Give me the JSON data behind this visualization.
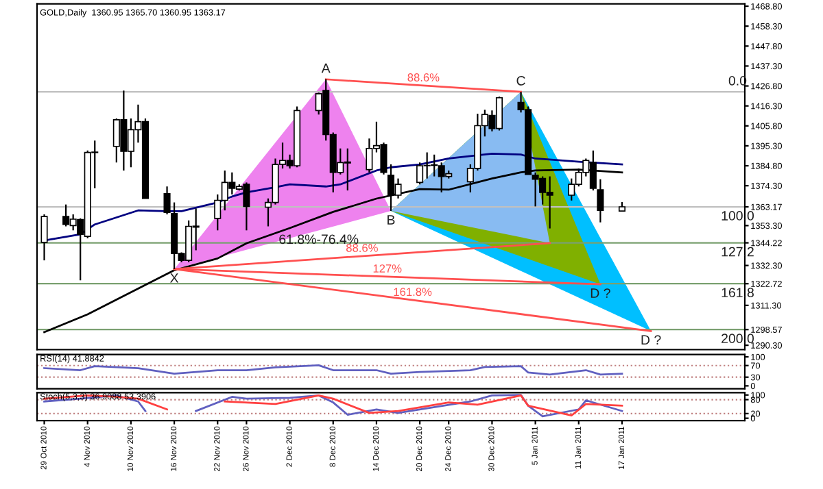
{
  "chart_data": [
    {
      "type": "candlestick",
      "title": "GOLD,Daily  1360.95 1365.70 1360.95 1363.17",
      "x": [
        "2010-10-29",
        "2010-11-01",
        "2010-11-02",
        "2010-11-03",
        "2010-11-04",
        "2010-11-05",
        "2010-11-08",
        "2010-11-09",
        "2010-11-10",
        "2010-11-11",
        "2010-11-12",
        "2010-11-15",
        "2010-11-16",
        "2010-11-17",
        "2010-11-18",
        "2010-11-19",
        "2010-11-22",
        "2010-11-23",
        "2010-11-24",
        "2010-11-25",
        "2010-11-26",
        "2010-11-29",
        "2010-11-30",
        "2010-12-01",
        "2010-12-02",
        "2010-12-03",
        "2010-12-06",
        "2010-12-07",
        "2010-12-08",
        "2010-12-09",
        "2010-12-10",
        "2010-12-13",
        "2010-12-14",
        "2010-12-15",
        "2010-12-16",
        "2010-12-17",
        "2010-12-20",
        "2010-12-21",
        "2010-12-22",
        "2010-12-23",
        "2010-12-24",
        "2010-12-27",
        "2010-12-28",
        "2010-12-29",
        "2010-12-30",
        "2010-12-31",
        "2011-01-03",
        "2011-01-04",
        "2011-01-05",
        "2011-01-06",
        "2011-01-07",
        "2011-01-10",
        "2011-01-11",
        "2011-01-12",
        "2011-01-13",
        "2011-01-14",
        "2011-01-17"
      ],
      "ohlc": [
        [
          1344.5,
          1359.2,
          1335.0,
          1358.1
        ],
        [
          1358.1,
          1364.4,
          1352.9,
          1353.9
        ],
        [
          1353.3,
          1359.2,
          1350.8,
          1356.7
        ],
        [
          1356.5,
          1357.1,
          1324.5,
          1348.7
        ],
        [
          1347.6,
          1392.8,
          1346.6,
          1391.8
        ],
        [
          1391.8,
          1398.1,
          1372.9,
          1392.0
        ],
        [
          1395.0,
          1409.7,
          1386.5,
          1409.0
        ],
        [
          1409.0,
          1424.4,
          1382.3,
          1392.4
        ],
        [
          1392.4,
          1409.7,
          1384.0,
          1403.8
        ],
        [
          1403.8,
          1417.0,
          1397.0,
          1408.0
        ],
        [
          1408.0,
          1409.7,
          1367.6,
          1367.6
        ],
        [
          1370.1,
          1373.9,
          1359.2,
          1360.2
        ],
        [
          1359.6,
          1365.5,
          1330.4,
          1338.6
        ],
        [
          1338.6,
          1339.2,
          1334.0,
          1335.0
        ],
        [
          1335.0,
          1356.0,
          1334.0,
          1352.9
        ],
        [
          1352.5,
          1362.3,
          1340.3,
          1353.0
        ],
        [
          1357.1,
          1369.7,
          1350.8,
          1366.6
        ],
        [
          1366.6,
          1382.3,
          1361.3,
          1376.0
        ],
        [
          1376.0,
          1381.3,
          1369.7,
          1372.9
        ],
        [
          1372.5,
          1375.0,
          1371.8,
          1373.9
        ],
        [
          1375.0,
          1376.0,
          1350.8,
          1363.4
        ],
        [
          1363.0,
          1367.6,
          1352.9,
          1365.5
        ],
        [
          1365.5,
          1388.6,
          1364.4,
          1385.5
        ],
        [
          1385.6,
          1397.0,
          1383.4,
          1387.6
        ],
        [
          1387.6,
          1390.7,
          1383.4,
          1384.8
        ],
        [
          1384.8,
          1416.0,
          1384.0,
          1413.9
        ],
        [
          1413.9,
          1423.3,
          1411.8,
          1422.7
        ],
        [
          1424.4,
          1430.3,
          1398.1,
          1401.2
        ],
        [
          1401.2,
          1402.3,
          1370.8,
          1381.3
        ],
        [
          1381.3,
          1393.9,
          1380.2,
          1386.5
        ],
        [
          1386.8,
          1393.9,
          1371.8,
          1386.3
        ],
        [
          1382.8,
          1399.1,
          1381.3,
          1393.9
        ],
        [
          1393.9,
          1408.0,
          1391.8,
          1395.4
        ],
        [
          1396.0,
          1397.0,
          1380.2,
          1381.3
        ],
        [
          1379.8,
          1385.5,
          1361.0,
          1369.3
        ],
        [
          1369.3,
          1378.1,
          1367.6,
          1375.0
        ],
        [
          1376.0,
          1386.5,
          1375.0,
          1384.8
        ],
        [
          1384.8,
          1391.8,
          1378.1,
          1385.0
        ],
        [
          1385.0,
          1390.7,
          1379.2,
          1385.2
        ],
        [
          1384.8,
          1386.5,
          1370.8,
          1379.2
        ],
        [
          1379.2,
          1382.3,
          1378.1,
          1380.6
        ],
        [
          1376.4,
          1385.5,
          1370.8,
          1383.4
        ],
        [
          1383.4,
          1412.2,
          1382.3,
          1405.9
        ],
        [
          1405.9,
          1414.3,
          1400.2,
          1411.8
        ],
        [
          1411.3,
          1413.9,
          1402.9,
          1404.4
        ],
        [
          1404.4,
          1421.2,
          1403.4,
          1420.6
        ],
        [
          1418.1,
          1423.7,
          1412.8,
          1414.3
        ],
        [
          1414.3,
          1416.0,
          1380.2,
          1380.2
        ],
        [
          1379.8,
          1381.3,
          1363.4,
          1377.7
        ],
        [
          1378.1,
          1379.2,
          1364.4,
          1370.8
        ],
        [
          1370.8,
          1379.2,
          1351.8,
          1369.3
        ],
        [
          1369.3,
          1378.1,
          1366.5,
          1375.0
        ],
        [
          1375.0,
          1383.4,
          1373.9,
          1381.3
        ],
        [
          1381.3,
          1388.6,
          1379.2,
          1387.6
        ],
        [
          1386.5,
          1392.8,
          1371.8,
          1372.9
        ],
        [
          1372.2,
          1377.7,
          1355.0,
          1361.3
        ],
        [
          1360.95,
          1365.7,
          1360.95,
          1363.17
        ]
      ],
      "series": [
        {
          "type": "area",
          "color": "#ee82ee",
          "x": [
            "2010-11-16",
            "2010-12-07",
            "2010-12-16"
          ],
          "values": [
            1330.4,
            1430.3,
            1361.0
          ]
        },
        {
          "type": "area",
          "color": "#00bfff",
          "x": [
            "2010-12-16",
            "2011-01-03",
            "2011-01-21"
          ],
          "values": [
            1361.0,
            1423.7,
            1297.8
          ]
        },
        {
          "type": "area",
          "color": "#80b000",
          "x": [
            "2010-12-16",
            "2011-01-03",
            "2011-01-14"
          ],
          "values": [
            1361.0,
            1423.7,
            1322.4
          ]
        },
        {
          "type": "area",
          "color": "#88bbf2",
          "x": [
            "2010-12-16",
            "2011-01-03",
            "2011-01-07"
          ],
          "values": [
            1361.0,
            1423.7,
            1344.1
          ]
        },
        {
          "type": "line",
          "color": "#000080",
          "x": [
            "2010-10-29",
            "2010-11-03",
            "2010-11-05",
            "2010-11-11",
            "2010-11-15",
            "2010-11-17",
            "2010-11-22",
            "2010-11-24",
            "2010-11-26",
            "2010-11-30",
            "2010-12-02",
            "2010-12-07",
            "2010-12-09",
            "2010-12-14",
            "2010-12-16",
            "2010-12-20",
            "2010-12-24",
            "2010-12-30",
            "2011-01-03",
            "2011-01-05",
            "2011-01-11",
            "2011-01-17"
          ],
          "values": [
            1345.5,
            1348.7,
            1353.9,
            1361.3,
            1360.9,
            1360.9,
            1365.5,
            1368.6,
            1370.8,
            1373.5,
            1375.0,
            1373.9,
            1375.0,
            1382.3,
            1384.0,
            1385.5,
            1388.6,
            1391.2,
            1390.7,
            1388.6,
            1386.9,
            1385.5
          ]
        },
        {
          "type": "line",
          "color": "#000000",
          "x": [
            "2010-10-29",
            "2010-11-04",
            "2010-11-10",
            "2010-11-16",
            "2010-11-22",
            "2010-11-26",
            "2010-12-02",
            "2010-12-08",
            "2010-12-14",
            "2010-12-20",
            "2010-12-24",
            "2010-12-30",
            "2011-01-03",
            "2011-01-05",
            "2011-01-11",
            "2011-01-17"
          ],
          "values": [
            1297.2,
            1306.6,
            1318.2,
            1329.8,
            1336.0,
            1344.0,
            1352.0,
            1360.5,
            1367.5,
            1372.5,
            1372.2,
            1378.1,
            1381.3,
            1382.3,
            1382.8,
            1381.3
          ]
        },
        {
          "type": "line",
          "name": "88.6%",
          "color": "#ff5050",
          "x": [
            "2010-12-07",
            "2011-01-03"
          ],
          "values": [
            1430.3,
            1423.7
          ]
        },
        {
          "type": "line",
          "name": "88.6%",
          "color": "#ff5050",
          "x": [
            "2010-11-16",
            "2011-01-07"
          ],
          "values": [
            1330.4,
            1344.1
          ]
        },
        {
          "type": "line",
          "name": "127%",
          "color": "#ff5050",
          "x": [
            "2010-11-16",
            "2011-01-14"
          ],
          "values": [
            1330.4,
            1322.4
          ]
        },
        {
          "type": "line",
          "name": "161.8%",
          "color": "#ff5050",
          "x": [
            "2010-11-16",
            "2011-01-21"
          ],
          "values": [
            1330.4,
            1297.8
          ]
        }
      ],
      "annotations": [
        {
          "text": "A",
          "x": "2010-12-07",
          "y": 1430.3
        },
        {
          "text": "X",
          "x": "2010-11-16",
          "y": 1330.4
        },
        {
          "text": "B",
          "x": "2010-12-16",
          "y": 1361.0
        },
        {
          "text": "C",
          "x": "2011-01-03",
          "y": 1423.7
        },
        {
          "text": "D ?",
          "x": "2011-01-14",
          "y": 1322.4
        },
        {
          "text": "D ?",
          "x": "2011-01-21",
          "y": 1297.8
        },
        {
          "text": "61.8%-76.4%",
          "x": "2010-12-06",
          "y": 1350.8
        },
        {
          "text": "0.0",
          "x": "2011-02-02",
          "y": 1423.7
        },
        {
          "text": "100.0",
          "x": "2011-02-02",
          "y": 1363.17
        },
        {
          "text": "127.2",
          "x": "2011-02-02",
          "y": 1344.22
        },
        {
          "text": "161.8",
          "x": "2011-02-02",
          "y": 1322.72
        },
        {
          "text": "200.0",
          "x": "2011-02-02",
          "y": 1298.57
        }
      ],
      "ref_lines": [
        {
          "axis": "y",
          "value": 1423.7,
          "color": "#c0c0c0"
        },
        {
          "axis": "y",
          "value": 1363.17,
          "color": "#c0c0c0"
        },
        {
          "axis": "y",
          "value": 1344.22,
          "color": "#7aa070"
        },
        {
          "axis": "y",
          "value": 1322.72,
          "color": "#7aa070"
        },
        {
          "axis": "y",
          "value": 1298.57,
          "color": "#7aa070"
        }
      ],
      "xlim": [
        "2010-10-28",
        "2011-02-03"
      ],
      "ylim": [
        1288,
        1470
      ],
      "yticks": [
        {
          "value": 1468.8,
          "label": "1468.80"
        },
        {
          "value": 1458.3,
          "label": "1458.30"
        },
        {
          "value": 1447.8,
          "label": "1447.80"
        },
        {
          "value": 1437.3,
          "label": "1437.30"
        },
        {
          "value": 1426.8,
          "label": "1426.80"
        },
        {
          "value": 1416.3,
          "label": "1416.30"
        },
        {
          "value": 1405.8,
          "label": "1405.80"
        },
        {
          "value": 1395.3,
          "label": "1395.30"
        },
        {
          "value": 1384.8,
          "label": "1384.80"
        },
        {
          "value": 1374.3,
          "label": "1374.30"
        },
        1363.17,
        {
          "value": 1353.3,
          "label": "1353.30"
        },
        1344.22,
        {
          "value": 1332.3,
          "label": "1332.30"
        },
        1322.72,
        {
          "value": 1311.3,
          "label": "1311.30"
        },
        1298.57,
        {
          "value": 1290.3,
          "label": "1290.30"
        }
      ],
      "tick_labels": "y",
      "grid": false,
      "legend": false
    },
    {
      "type": "line",
      "title": "RSI(14) 41.8842",
      "series": [
        {
          "color": "#6060c0",
          "x": [
            "2010-10-29",
            "2010-11-03",
            "2010-11-05",
            "2010-11-11",
            "2010-11-16",
            "2010-11-22",
            "2010-11-26",
            "2010-11-30",
            "2010-12-06",
            "2010-12-08",
            "2010-12-14",
            "2010-12-16",
            "2010-12-20",
            "2010-12-27",
            "2010-12-29",
            "2011-01-03",
            "2011-01-04",
            "2011-01-07",
            "2011-01-12",
            "2011-01-14",
            "2011-01-17"
          ],
          "values": [
            61,
            54,
            68,
            61,
            42,
            54,
            54,
            64,
            71,
            54,
            54,
            42,
            48,
            54,
            65,
            68,
            46,
            39,
            54,
            39,
            42
          ]
        }
      ],
      "ref_lines": [
        {
          "axis": "y",
          "value": 30,
          "color": "#c08080",
          "line_style": "dotted"
        },
        {
          "axis": "y",
          "value": 70,
          "color": "#c08080",
          "line_style": "dotted"
        }
      ],
      "xlim": [
        "2010-10-28",
        "2011-02-03"
      ],
      "ylim": [
        -10,
        108
      ],
      "yticks": [
        0,
        30,
        70,
        100
      ],
      "tick_labels": "y",
      "grid": false,
      "legend": false
    },
    {
      "type": "line",
      "title": "Stoch(5,3,3) 36.9088 53.3906",
      "series": [
        {
          "color": "#6060c0",
          "x": [
            "2010-10-29",
            "2010-11-03",
            "2010-11-08",
            "2010-11-11",
            "2010-11-12",
            "2010-11-16",
            "2010-11-19",
            "2010-11-24",
            "2010-11-26",
            "2010-12-02",
            "2010-12-06",
            "2010-12-08",
            "2010-12-10",
            "2010-12-14",
            "2010-12-17",
            "2010-12-27",
            "2010-12-30",
            "2011-01-03",
            "2011-01-04",
            "2011-01-06",
            "2011-01-11",
            "2011-01-12",
            "2011-01-17"
          ],
          "values": [
            72,
            84,
            98,
            72,
            31,
            null,
            31,
            92,
            84,
            88,
            98,
            68,
            15,
            38,
            23,
            72,
            98,
            100,
            54,
            8,
            38,
            77,
            31
          ]
        },
        {
          "color": "#ff4040",
          "x": [
            "2010-10-29",
            "2010-11-04",
            "2010-11-08",
            "2010-11-11",
            "2010-11-15",
            "2010-11-16",
            "2010-11-23",
            "2010-11-30",
            "2010-12-06",
            "2010-12-08",
            "2010-12-13",
            "2010-12-17",
            "2010-12-24",
            "2010-12-28",
            "2011-01-03",
            "2011-01-04",
            "2011-01-10",
            "2011-01-12",
            "2011-01-17"
          ],
          "values": [
            84,
            98,
            92,
            84,
            38,
            null,
            72,
            61,
            98,
            84,
            23,
            31,
            68,
            58,
            98,
            54,
            12,
            61,
            54
          ]
        }
      ],
      "ref_lines": [
        {
          "axis": "y",
          "value": 20,
          "color": "#c08080",
          "line_style": "dotted"
        },
        {
          "axis": "y",
          "value": 80,
          "color": "#c08080",
          "line_style": "dotted"
        }
      ],
      "xlim": [
        "2010-10-28",
        "2011-02-03"
      ],
      "ylim": [
        -10,
        110
      ],
      "yticks": [
        0,
        20,
        80,
        100
      ],
      "xticks": [
        {
          "value": "2010-10-29",
          "label": "29 Oct 2010"
        },
        {
          "value": "2010-11-04",
          "label": "4 Nov 2010"
        },
        {
          "value": "2010-11-10",
          "label": "10 Nov 2010"
        },
        {
          "value": "2010-11-16",
          "label": "16 Nov 2010"
        },
        {
          "value": "2010-11-22",
          "label": "22 Nov 2010"
        },
        {
          "value": "2010-11-26",
          "label": "26 Nov 2010"
        },
        {
          "value": "2010-12-02",
          "label": "2 Dec 2010"
        },
        {
          "value": "2010-12-08",
          "label": "8 Dec 2010"
        },
        {
          "value": "2010-12-14",
          "label": "14 Dec 2010"
        },
        {
          "value": "2010-12-20",
          "label": "20 Dec 2010"
        },
        {
          "value": "2010-12-24",
          "label": "24 Dec 2010"
        },
        {
          "value": "2010-12-30",
          "label": "30 Dec 2010"
        },
        {
          "value": "2011-01-05",
          "label": "5 Jan 2011"
        },
        {
          "value": "2011-01-11",
          "label": "11 Jan 2011"
        },
        {
          "value": "2011-01-17",
          "label": "17 Jan 2011"
        }
      ],
      "grid": false,
      "legend": false
    }
  ]
}
